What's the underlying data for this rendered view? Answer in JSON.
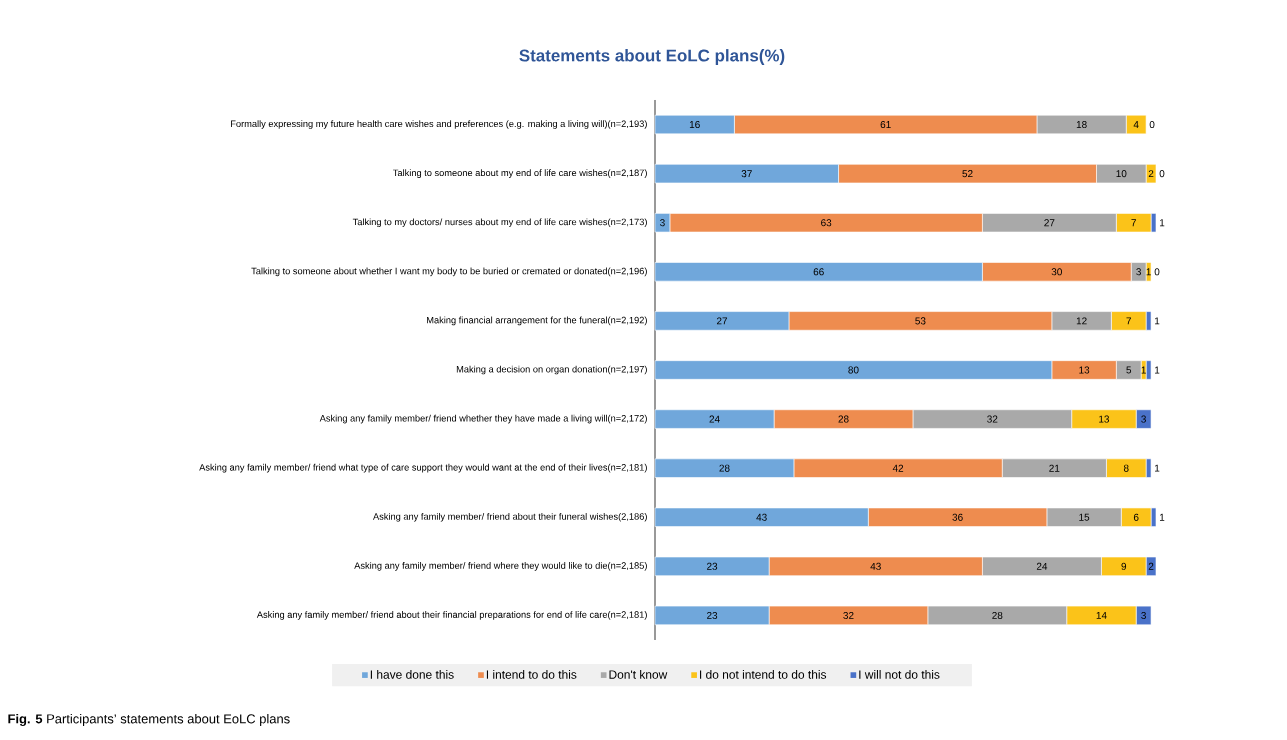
{
  "chart_data": {
    "type": "bar",
    "orientation": "horizontal",
    "stacked": true,
    "title": "Statements about EoLC plans(%)",
    "categories": [
      "Formally expressing my future health care wishes and preferences (e.g. making a living will)(n=2,193)",
      "Talking to someone about my end of life care wishes(n=2,187)",
      "Talking to my doctors/ nurses about my end of life care wishes(n=2,173)",
      "Talking to someone about whether I want my body to be buried or cremated or donated(n=2,196)",
      "Making financial arrangement for the funeral(n=2,192)",
      "Making a decision on organ donation(n=2,197)",
      "Asking any family member/ friend whether they have made a living will(n=2,172)",
      "Asking any family member/ friend what type of care support they would want at the end of their lives(n=2,181)",
      "Asking any family member/ friend about their funeral wishes(2,186)",
      "Asking any family member/ friend where they would like to die(n=2,185)",
      "Asking any family member/ friend about their financial preparations for end of life care(n=2,181)"
    ],
    "series": [
      {
        "name": "I have done this",
        "color": "#70a7db",
        "values": [
          16,
          37,
          3,
          66,
          27,
          80,
          24,
          28,
          43,
          23,
          23
        ]
      },
      {
        "name": "I intend to do this",
        "color": "#ee8c4f",
        "values": [
          61,
          52,
          63,
          30,
          53,
          13,
          28,
          42,
          36,
          43,
          32
        ]
      },
      {
        "name": "Don't know",
        "color": "#a9a9a9",
        "values": [
          18,
          10,
          27,
          3,
          12,
          5,
          32,
          21,
          15,
          24,
          28
        ]
      },
      {
        "name": "I do not intend to do this",
        "color": "#fbc319",
        "values": [
          4,
          2,
          7,
          1,
          7,
          1,
          13,
          8,
          6,
          9,
          14
        ]
      },
      {
        "name": "I will not do this",
        "color": "#4a72c9",
        "values": [
          0,
          0,
          1,
          0,
          1,
          1,
          3,
          1,
          1,
          2,
          3
        ]
      }
    ],
    "xlim": [
      0,
      101
    ],
    "tick_labels": "y",
    "data_labels": true,
    "legend": "bottom",
    "annotations": [
      "**Fig. 5** Participants’ statements about EoLC plans"
    ]
  }
}
